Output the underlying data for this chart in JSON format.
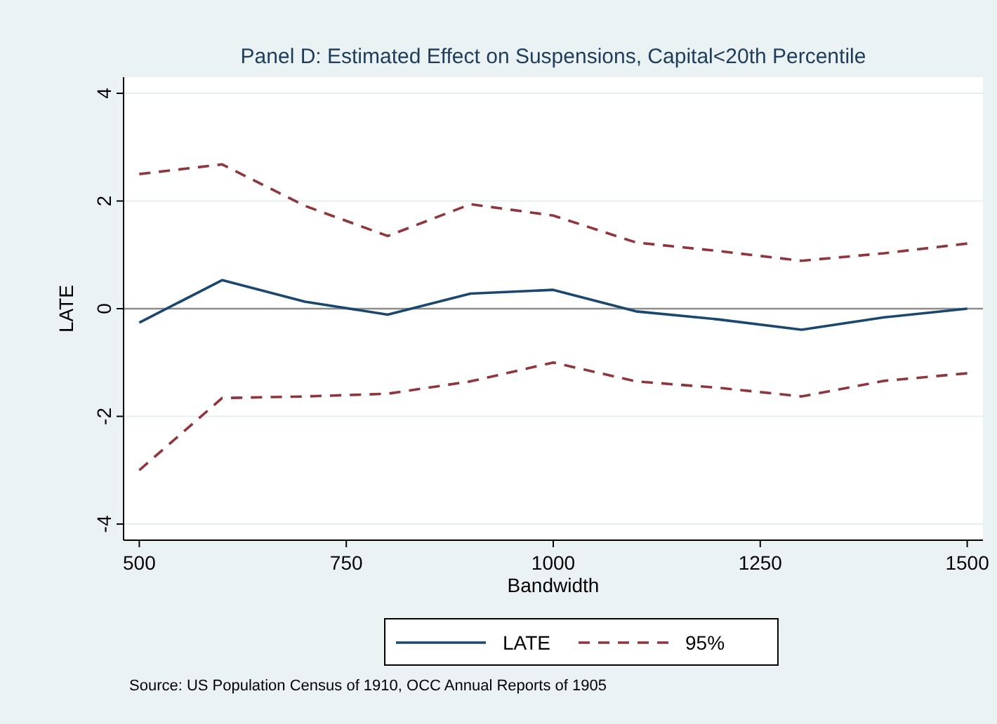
{
  "chart_data": {
    "type": "line",
    "title": "Panel D: Estimated Effect on Suspensions, Capital<20th Percentile",
    "xlabel": "Bandwidth",
    "ylabel": "LATE",
    "x": [
      500,
      600,
      700,
      800,
      900,
      1000,
      1100,
      1200,
      1300,
      1400,
      1500
    ],
    "series": [
      {
        "name": "LATE",
        "color": "#1a476f",
        "line_style": "solid",
        "values": [
          -0.26,
          0.53,
          0.13,
          -0.11,
          0.28,
          0.35,
          -0.05,
          -0.2,
          -0.39,
          -0.16,
          0
        ]
      },
      {
        "name": "95%",
        "color": "#90353b",
        "line_style": "dashed",
        "values": [
          2.5,
          2.68,
          1.91,
          1.35,
          1.94,
          1.73,
          1.23,
          1.07,
          0.89,
          1.03,
          1.21
        ]
      },
      {
        "color": "#90353b",
        "line_style": "dashed",
        "values": [
          -3.0,
          -1.66,
          -1.63,
          -1.58,
          -1.35,
          -1.0,
          -1.35,
          -1.47,
          -1.63,
          -1.34,
          -1.2
        ]
      }
    ],
    "xlim": [
      481,
      1519
    ],
    "xticks": [
      500,
      750,
      1000,
      1250,
      1500
    ],
    "ylim": [
      -4.3,
      4.3
    ],
    "yticks": [
      -4,
      -2,
      0,
      2,
      4
    ],
    "grid": "y",
    "legend": "bottom",
    "marker": "none",
    "ref_lines": [
      {
        "axis": "y",
        "value": 0,
        "color": "#8c8c8c"
      }
    ],
    "annotations": [
      "Source: US Population Census of 1910, OCC Annual Reports of 1905"
    ]
  }
}
